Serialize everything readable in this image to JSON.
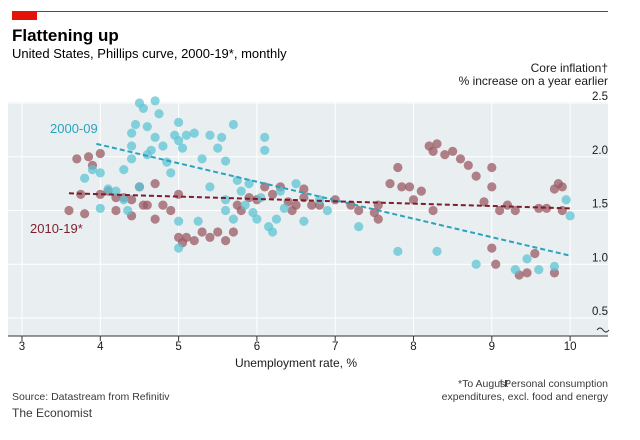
{
  "title": "Flattening up",
  "subtitle": "United States, Phillips curve, 2000-19*, monthly",
  "source": "Source: Datastream from Refinitiv",
  "brand": "The Economist",
  "footnotes": {
    "note1": "*To August",
    "note2a": "†Personal consumption",
    "note2b": "expenditures, excl. food and energy"
  },
  "colors": {
    "accent": "#e3120b",
    "series_2000": "#5fc4d4",
    "series_2010": "#9b5a63",
    "trend_2000": "#2aa3bd",
    "trend_2010": "#7b1f2c",
    "grid": "#cfd8dc",
    "plot_bg": "#e9eef1"
  },
  "chart_data": {
    "type": "scatter",
    "xlabel": "Unemployment rate, %",
    "ylabel": "Core inflation†",
    "ylabel_sub": "% increase on a year earlier",
    "xlim": [
      3,
      10.4
    ],
    "ylim": [
      0.3,
      2.6
    ],
    "x_ticks": [
      "3",
      "4",
      "5",
      "6",
      "7",
      "8",
      "9",
      "10"
    ],
    "y_ticks": [
      "0.5",
      "1.0",
      "1.5",
      "2.0",
      "2.5"
    ],
    "series": [
      {
        "name": "2000-09",
        "trend": [
          [
            3.95,
            2.12
          ],
          [
            10.0,
            1.08
          ]
        ],
        "points": [
          [
            3.8,
            1.8
          ],
          [
            3.9,
            1.88
          ],
          [
            4.0,
            1.85
          ],
          [
            4.0,
            1.52
          ],
          [
            4.1,
            1.7
          ],
          [
            4.2,
            1.68
          ],
          [
            4.3,
            1.6
          ],
          [
            4.3,
            1.88
          ],
          [
            4.4,
            2.1
          ],
          [
            4.4,
            2.22
          ],
          [
            4.4,
            1.98
          ],
          [
            4.45,
            2.3
          ],
          [
            4.5,
            2.5
          ],
          [
            4.55,
            2.45
          ],
          [
            4.6,
            2.28
          ],
          [
            4.65,
            2.06
          ],
          [
            4.7,
            2.52
          ],
          [
            4.75,
            2.4
          ],
          [
            4.6,
            2.02
          ],
          [
            4.7,
            2.18
          ],
          [
            4.8,
            2.1
          ],
          [
            4.85,
            1.95
          ],
          [
            4.9,
            1.85
          ],
          [
            4.95,
            2.2
          ],
          [
            5.0,
            2.15
          ],
          [
            5.0,
            2.32
          ],
          [
            5.05,
            2.08
          ],
          [
            5.1,
            2.2
          ],
          [
            5.2,
            2.22
          ],
          [
            5.3,
            1.98
          ],
          [
            5.4,
            1.72
          ],
          [
            5.4,
            2.2
          ],
          [
            5.5,
            2.08
          ],
          [
            5.55,
            2.18
          ],
          [
            5.6,
            1.96
          ],
          [
            5.6,
            1.6
          ],
          [
            5.7,
            1.42
          ],
          [
            5.7,
            2.3
          ],
          [
            5.75,
            1.78
          ],
          [
            5.8,
            1.68
          ],
          [
            5.85,
            1.55
          ],
          [
            5.9,
            1.75
          ],
          [
            5.95,
            1.48
          ],
          [
            6.0,
            1.42
          ],
          [
            6.05,
            1.62
          ],
          [
            6.1,
            2.06
          ],
          [
            6.1,
            2.18
          ],
          [
            6.15,
            1.35
          ],
          [
            6.2,
            1.3
          ],
          [
            6.3,
            1.68
          ],
          [
            6.35,
            1.52
          ],
          [
            6.5,
            1.75
          ],
          [
            6.6,
            1.4
          ],
          [
            6.8,
            1.6
          ],
          [
            6.9,
            1.5
          ],
          [
            7.3,
            1.35
          ],
          [
            7.8,
            1.12
          ],
          [
            8.3,
            1.12
          ],
          [
            8.8,
            1.0
          ],
          [
            9.3,
            0.95
          ],
          [
            9.45,
            1.05
          ],
          [
            9.6,
            0.95
          ],
          [
            9.8,
            0.98
          ],
          [
            9.95,
            1.6
          ],
          [
            10.0,
            1.45
          ],
          [
            5.0,
            1.15
          ],
          [
            5.0,
            1.4
          ],
          [
            4.5,
            1.72
          ],
          [
            4.35,
            1.5
          ],
          [
            5.25,
            1.4
          ],
          [
            5.6,
            1.5
          ],
          [
            6.25,
            1.42
          ]
        ]
      },
      {
        "name": "2010-19*",
        "trend": [
          [
            3.6,
            1.66
          ],
          [
            10.0,
            1.52
          ]
        ],
        "points": [
          [
            3.6,
            1.5
          ],
          [
            3.7,
            1.98
          ],
          [
            3.75,
            1.65
          ],
          [
            3.8,
            1.47
          ],
          [
            3.85,
            2.0
          ],
          [
            3.9,
            1.92
          ],
          [
            4.0,
            2.03
          ],
          [
            4.0,
            1.65
          ],
          [
            4.1,
            1.68
          ],
          [
            4.2,
            1.5
          ],
          [
            4.2,
            1.62
          ],
          [
            4.3,
            1.62
          ],
          [
            4.4,
            1.6
          ],
          [
            4.4,
            1.45
          ],
          [
            4.5,
            1.72
          ],
          [
            4.55,
            1.55
          ],
          [
            4.6,
            1.55
          ],
          [
            4.7,
            1.42
          ],
          [
            4.7,
            1.75
          ],
          [
            4.8,
            1.55
          ],
          [
            4.9,
            1.5
          ],
          [
            5.0,
            1.65
          ],
          [
            5.0,
            1.25
          ],
          [
            5.05,
            1.2
          ],
          [
            5.1,
            1.25
          ],
          [
            5.2,
            1.22
          ],
          [
            5.3,
            1.3
          ],
          [
            5.4,
            1.25
          ],
          [
            5.5,
            1.3
          ],
          [
            5.6,
            1.22
          ],
          [
            5.7,
            1.3
          ],
          [
            5.75,
            1.55
          ],
          [
            5.8,
            1.5
          ],
          [
            5.9,
            1.62
          ],
          [
            6.0,
            1.6
          ],
          [
            6.1,
            1.72
          ],
          [
            6.2,
            1.65
          ],
          [
            6.3,
            1.72
          ],
          [
            6.4,
            1.58
          ],
          [
            6.5,
            1.55
          ],
          [
            6.6,
            1.62
          ],
          [
            6.7,
            1.55
          ],
          [
            6.8,
            1.55
          ],
          [
            7.0,
            1.6
          ],
          [
            7.2,
            1.55
          ],
          [
            7.3,
            1.5
          ],
          [
            7.5,
            1.48
          ],
          [
            7.55,
            1.42
          ],
          [
            7.7,
            1.75
          ],
          [
            7.8,
            1.9
          ],
          [
            7.85,
            1.72
          ],
          [
            7.95,
            1.72
          ],
          [
            8.0,
            1.6
          ],
          [
            8.1,
            1.68
          ],
          [
            8.2,
            2.1
          ],
          [
            8.25,
            2.05
          ],
          [
            8.3,
            2.12
          ],
          [
            8.4,
            2.02
          ],
          [
            8.5,
            2.05
          ],
          [
            8.6,
            1.98
          ],
          [
            8.7,
            1.92
          ],
          [
            8.8,
            1.82
          ],
          [
            9.0,
            1.9
          ],
          [
            9.0,
            1.72
          ],
          [
            9.0,
            1.15
          ],
          [
            9.05,
            1.0
          ],
          [
            9.1,
            1.5
          ],
          [
            9.2,
            1.55
          ],
          [
            9.3,
            1.5
          ],
          [
            9.35,
            0.9
          ],
          [
            9.45,
            0.92
          ],
          [
            9.55,
            1.1
          ],
          [
            9.6,
            1.52
          ],
          [
            9.7,
            1.52
          ],
          [
            9.8,
            1.7
          ],
          [
            9.8,
            0.92
          ],
          [
            9.85,
            1.75
          ],
          [
            9.9,
            1.72
          ],
          [
            9.9,
            1.5
          ],
          [
            8.25,
            1.5
          ],
          [
            7.55,
            1.55
          ],
          [
            6.6,
            1.7
          ],
          [
            6.45,
            1.5
          ],
          [
            8.9,
            1.58
          ]
        ]
      }
    ]
  }
}
